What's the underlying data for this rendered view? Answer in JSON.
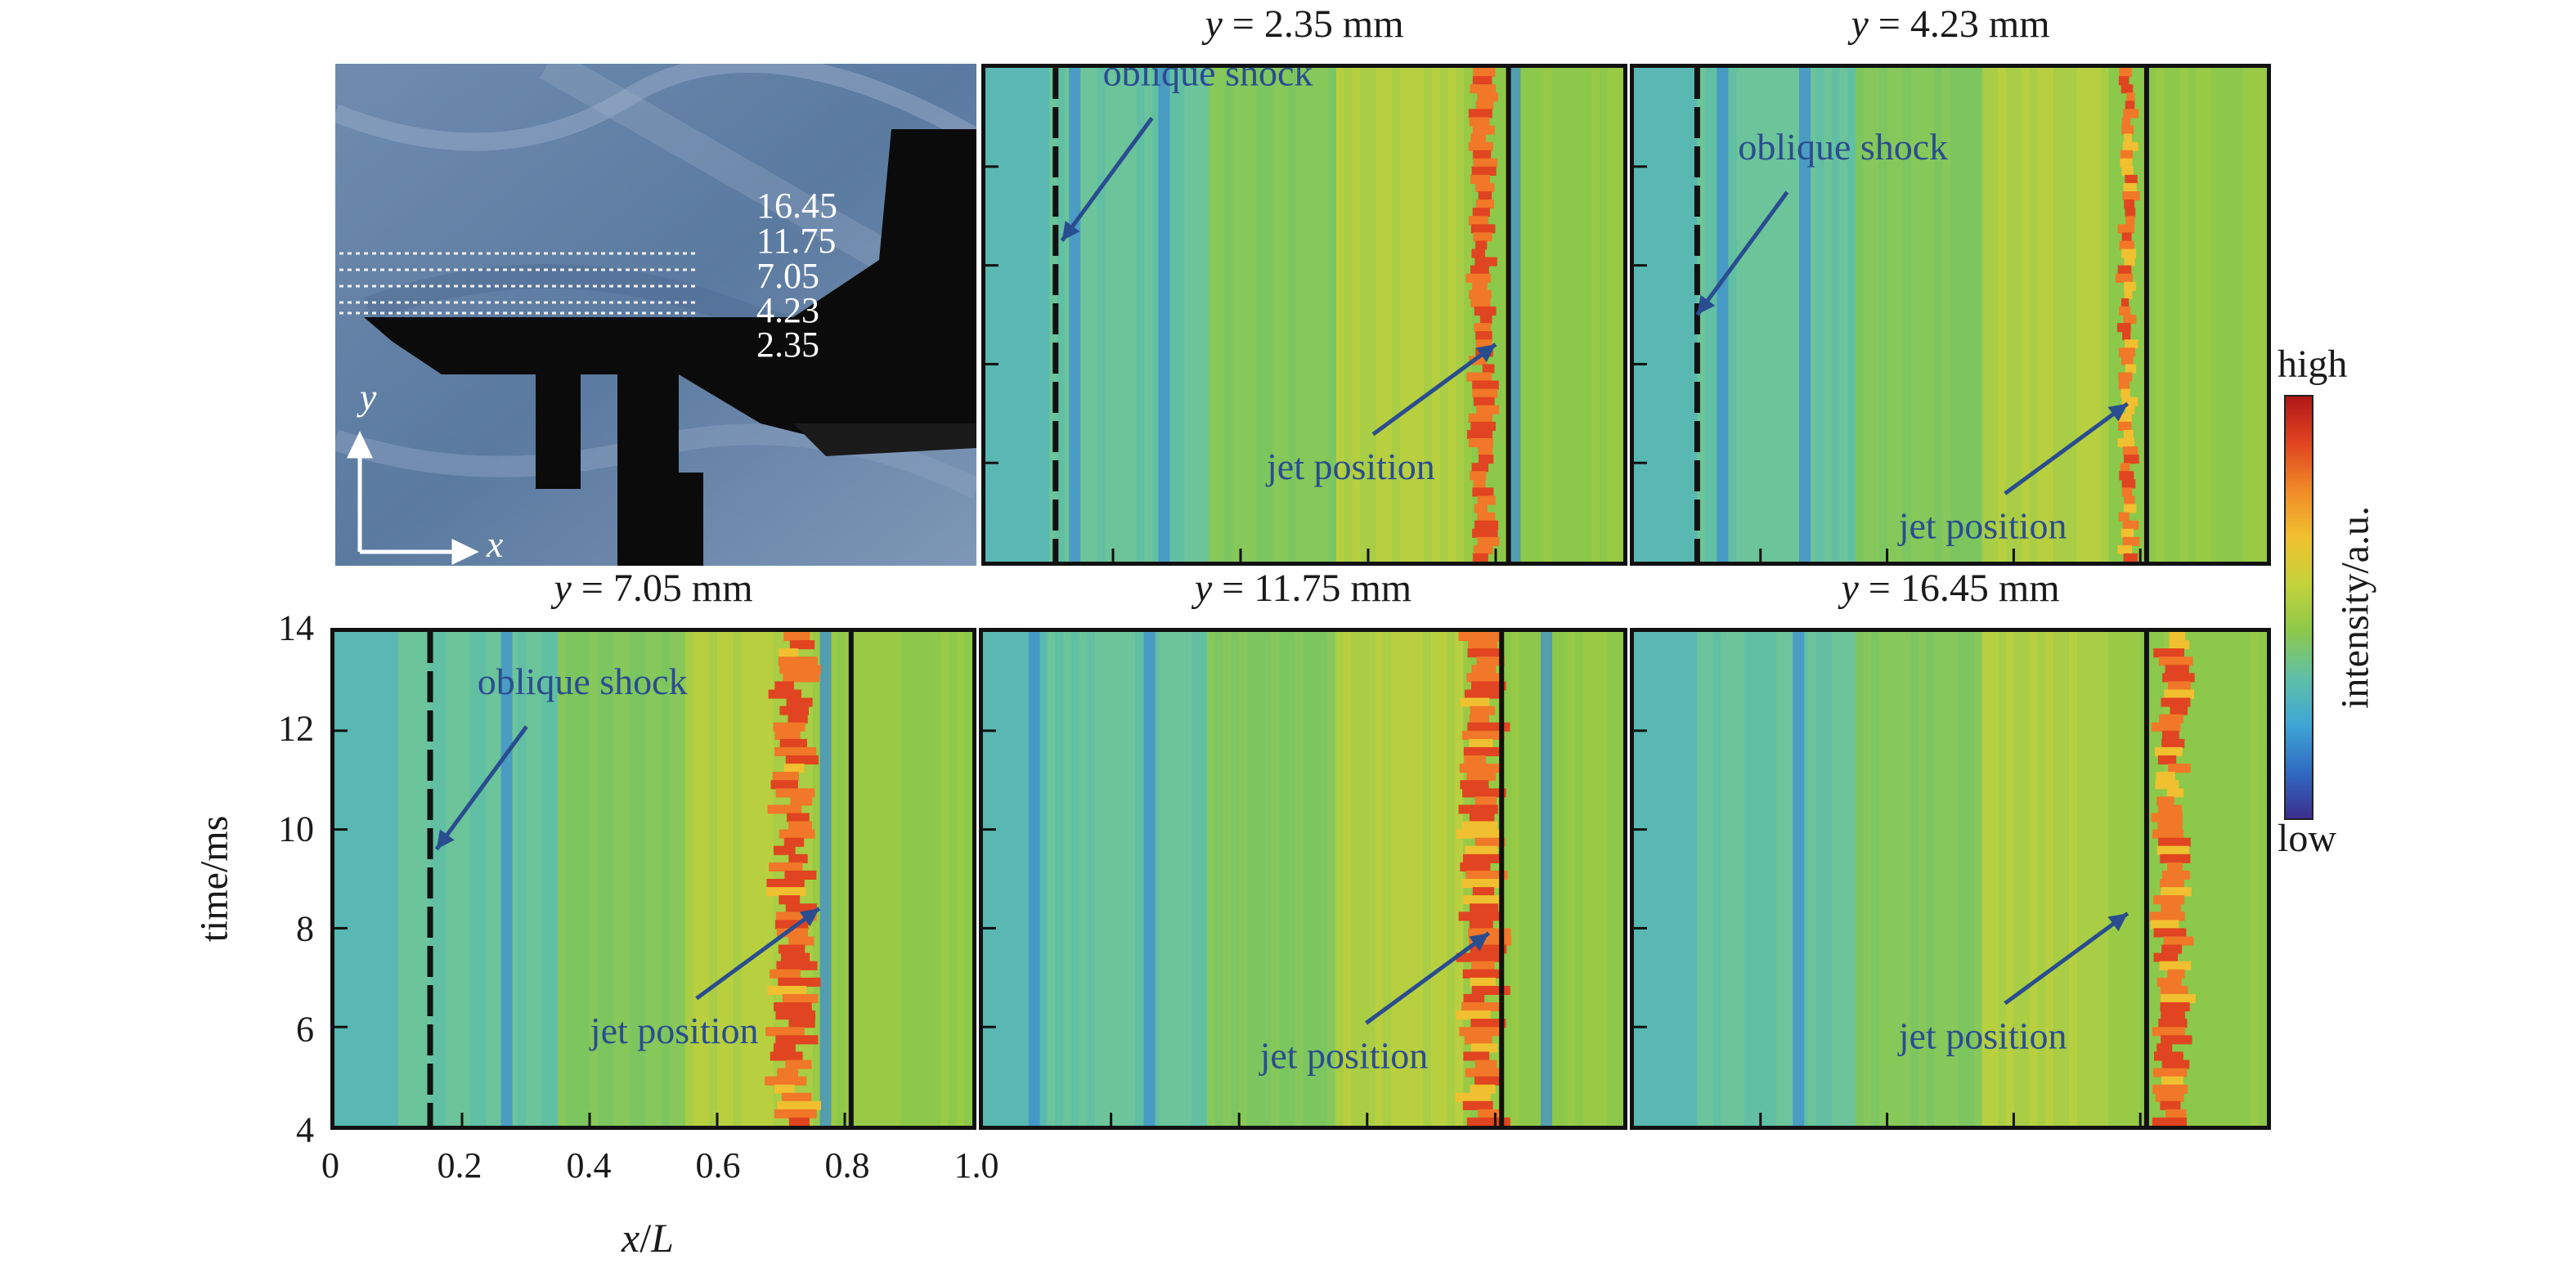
{
  "figure": {
    "inset": {
      "levels": [
        "16.45",
        "11.75",
        "7.05",
        "4.23",
        "2.35"
      ],
      "axis_x": "x",
      "axis_y": "y"
    },
    "colorbar": {
      "high": "high",
      "low": "low",
      "label": "intensity/a.u.",
      "colors": [
        "#3d2e8f",
        "#2f6bc2",
        "#3fa6d6",
        "#5fc0a8",
        "#8cc84a",
        "#c4d23a",
        "#f0c030",
        "#f08a28",
        "#e04420",
        "#b01818"
      ]
    },
    "axes": {
      "xlabel_var": "x",
      "xlabel_unit": "L",
      "ylabel": "time/ms",
      "xticks": [
        "0",
        "0.2",
        "0.4",
        "0.6",
        "0.8",
        "1.0"
      ],
      "yticks": [
        "4",
        "6",
        "8",
        "10",
        "12",
        "14"
      ]
    }
  },
  "chart_data": [
    {
      "type": "heatmap",
      "title_var": "y",
      "title_val": "2.35 mm",
      "xlim": [
        0,
        1
      ],
      "ylim": [
        4,
        14
      ],
      "shock_x": 0.11,
      "jet_x": 0.78,
      "jet_width": 0.03,
      "jet_intensity": 1.0,
      "boundary_x": 0.82,
      "blue_x": [
        0.14,
        0.28,
        0.83
      ],
      "annotations": [
        {
          "text": "oblique shock",
          "x": 0.12,
          "y": 10.5
        },
        {
          "text": "jet position",
          "x": 0.8,
          "y": 8.4
        }
      ]
    },
    {
      "type": "heatmap",
      "title_var": "y",
      "title_val": "4.23 mm",
      "xlim": [
        0,
        1
      ],
      "ylim": [
        4,
        14
      ],
      "shock_x": 0.1,
      "jet_x": 0.78,
      "jet_width": 0.02,
      "jet_intensity": 0.55,
      "boundary_x": 0.81,
      "blue_x": [
        0.14,
        0.27
      ],
      "annotations": [
        {
          "text": "oblique shock",
          "x": 0.1,
          "y": 9.0
        },
        {
          "text": "jet position",
          "x": 0.78,
          "y": 7.2
        }
      ]
    },
    {
      "type": "heatmap",
      "title_var": "y",
      "title_val": "7.05 mm",
      "xlim": [
        0,
        1
      ],
      "ylim": [
        4,
        14
      ],
      "shock_x": 0.15,
      "jet_x": 0.72,
      "jet_width": 0.05,
      "jet_intensity": 0.85,
      "boundary_x": 0.81,
      "blue_x": [
        0.27,
        0.77
      ],
      "annotations": [
        {
          "text": "oblique shock",
          "x": 0.16,
          "y": 9.6
        },
        {
          "text": "jet position",
          "x": 0.76,
          "y": 8.4
        }
      ]
    },
    {
      "type": "heatmap",
      "title_var": "y",
      "title_val": "11.75 mm",
      "xlim": [
        0,
        1
      ],
      "ylim": [
        4,
        14
      ],
      "shock_x": null,
      "jet_x": 0.78,
      "jet_width": 0.05,
      "jet_intensity": 0.85,
      "boundary_x": 0.81,
      "blue_x": [
        0.08,
        0.26,
        0.88
      ],
      "annotations": [
        {
          "text": "jet position",
          "x": 0.79,
          "y": 7.9
        }
      ]
    },
    {
      "type": "heatmap",
      "title_var": "y",
      "title_val": "16.45 mm",
      "xlim": [
        0,
        1
      ],
      "ylim": [
        4,
        14
      ],
      "shock_x": null,
      "jet_x": 0.85,
      "jet_width": 0.04,
      "jet_intensity": 0.75,
      "boundary_x": 0.81,
      "blue_x": [
        0.26
      ],
      "annotations": [
        {
          "text": "jet position",
          "x": 0.78,
          "y": 8.3
        }
      ]
    }
  ]
}
